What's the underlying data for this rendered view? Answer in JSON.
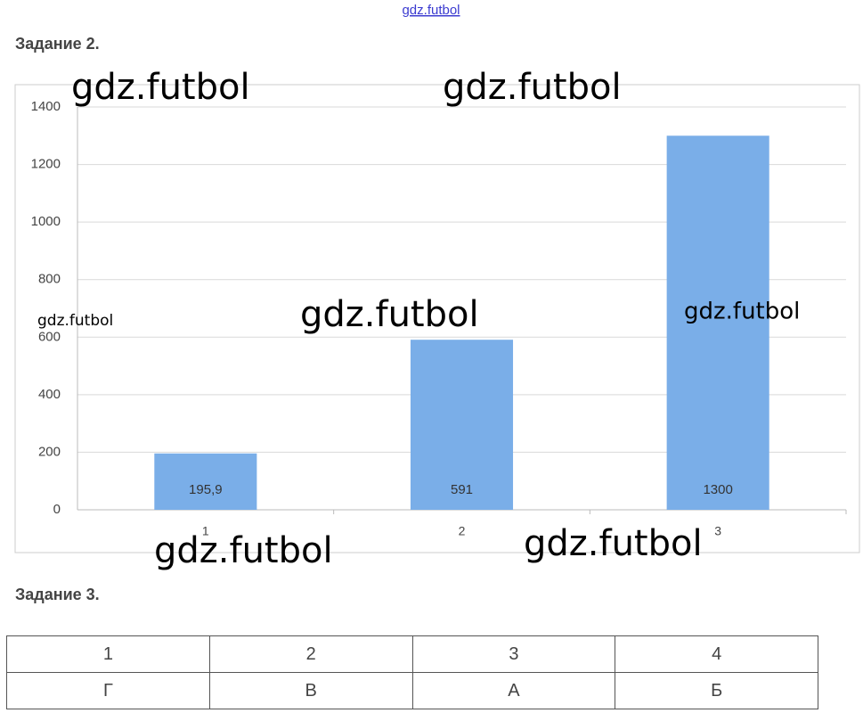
{
  "top_watermark": "gdz.futbol",
  "headings": [
    "Задание 2.",
    "Задание 3."
  ],
  "chart_data": {
    "type": "bar",
    "categories": [
      "1",
      "2",
      "3"
    ],
    "values": [
      195.9,
      591,
      1300
    ],
    "value_labels": [
      "195,9",
      "591",
      "1300"
    ],
    "color": "#7aaee8",
    "ylim": [
      0,
      1400
    ],
    "yticks": [
      0,
      200,
      400,
      600,
      800,
      1000,
      1200,
      1400
    ],
    "grid": true
  },
  "watermarks": [
    "gdz.futbol",
    "gdz.futbol",
    "gdz.futbol",
    "gdz.futbol",
    "gdz.futbol",
    "gdz.futbol",
    "gdz.futbol"
  ],
  "table": {
    "rows": [
      [
        "1",
        "2",
        "3",
        "4"
      ],
      [
        "Г",
        "В",
        "А",
        "Б"
      ]
    ]
  }
}
